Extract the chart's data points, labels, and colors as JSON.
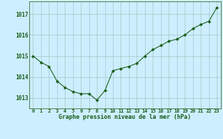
{
  "x": [
    0,
    1,
    2,
    3,
    4,
    5,
    6,
    7,
    8,
    9,
    10,
    11,
    12,
    13,
    14,
    15,
    16,
    17,
    18,
    19,
    20,
    21,
    22,
    23
  ],
  "y": [
    1015.0,
    1014.7,
    1014.5,
    1013.8,
    1013.5,
    1013.3,
    1013.2,
    1013.2,
    1012.9,
    1013.35,
    1014.3,
    1014.4,
    1014.5,
    1014.65,
    1015.0,
    1015.3,
    1015.5,
    1015.7,
    1015.8,
    1016.0,
    1016.3,
    1016.5,
    1016.65,
    1017.3
  ],
  "line_color": "#1a5c1a",
  "marker_color": "#1a5c1a",
  "bg_color": "#cceeff",
  "grid_color": "#aacccc",
  "xlabel": "Graphe pression niveau de la mer (hPa)",
  "xlabel_color": "#1a5c1a",
  "tick_color": "#1a5c1a",
  "ylim": [
    1012.5,
    1017.6
  ],
  "yticks": [
    1013,
    1014,
    1015,
    1016,
    1017
  ],
  "xticks": [
    0,
    1,
    2,
    3,
    4,
    5,
    6,
    7,
    8,
    9,
    10,
    11,
    12,
    13,
    14,
    15,
    16,
    17,
    18,
    19,
    20,
    21,
    22,
    23
  ],
  "xtick_labels": [
    "0",
    "1",
    "2",
    "3",
    "4",
    "5",
    "6",
    "7",
    "8",
    "9",
    "10",
    "11",
    "12",
    "13",
    "14",
    "15",
    "16",
    "17",
    "18",
    "19",
    "20",
    "21",
    "22",
    "23"
  ]
}
